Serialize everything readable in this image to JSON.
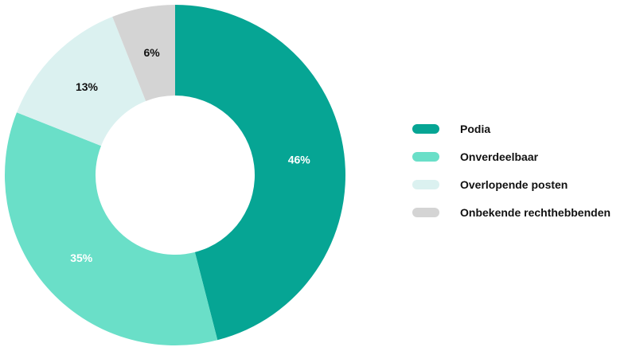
{
  "chart_data": {
    "type": "pie",
    "variant": "donut",
    "categories": [
      "Podia",
      "Onverdeelbaar",
      "Overlopende posten",
      "Onbekende rechthebbenden"
    ],
    "values": [
      46,
      35,
      13,
      6
    ],
    "value_labels": [
      "46%",
      "35%",
      "13%",
      "6%"
    ],
    "colors": [
      "#06a594",
      "#6adfc8",
      "#dbf1f0",
      "#d4d4d4"
    ],
    "label_colors": [
      "#ffffff",
      "#ffffff",
      "#111111",
      "#111111"
    ],
    "start_angle_deg": 0,
    "direction": "clockwise",
    "legend_position": "right"
  }
}
